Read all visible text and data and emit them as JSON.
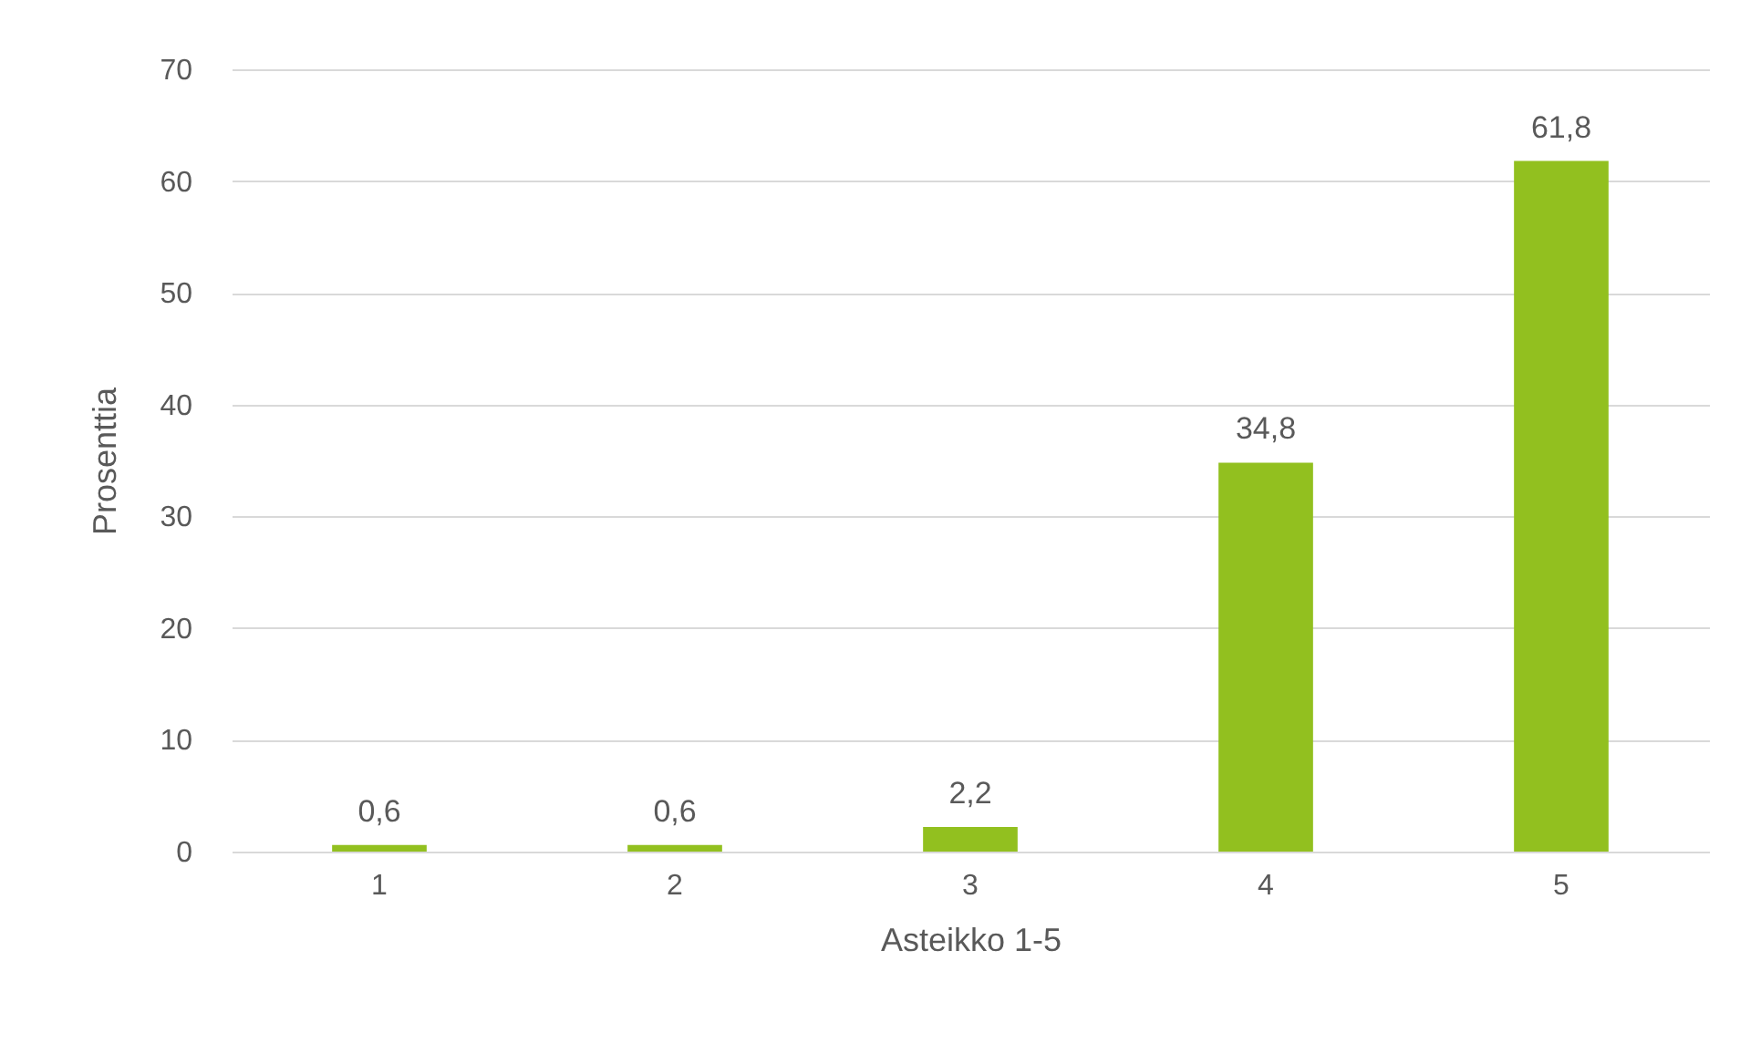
{
  "chart_data": {
    "type": "bar",
    "xlabel": "Asteikko 1-5",
    "ylabel": "Prosenttia",
    "categories": [
      "1",
      "2",
      "3",
      "4",
      "5"
    ],
    "values": [
      0.6,
      0.6,
      2.2,
      34.8,
      61.8
    ],
    "value_labels": [
      "0,6",
      "0,6",
      "2,2",
      "34,8",
      "61,8"
    ],
    "color": "#92c01f",
    "ylim": [
      0,
      70
    ],
    "yticks": [
      0,
      10,
      20,
      30,
      40,
      50,
      60,
      70
    ],
    "grid": "y"
  }
}
